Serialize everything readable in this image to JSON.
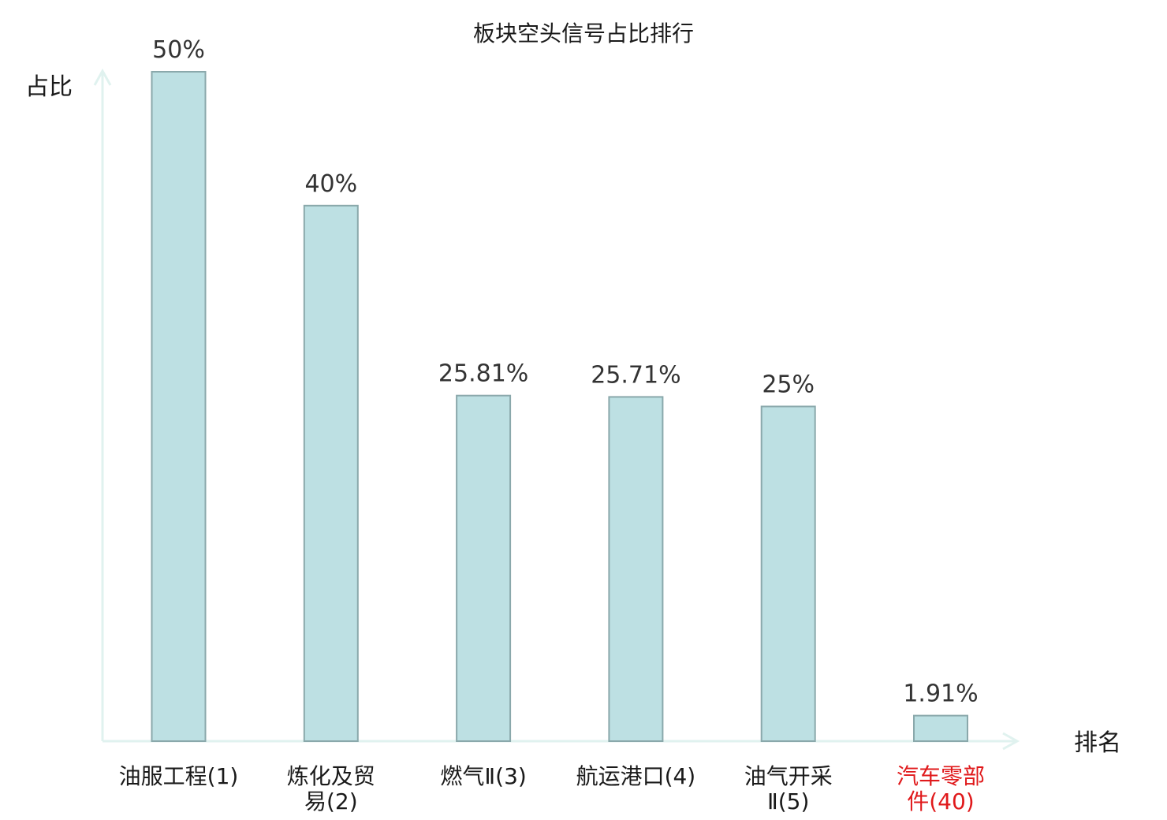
{
  "chart_data": {
    "type": "bar",
    "title": "板块空头信号占比排行",
    "ylabel": "占比",
    "xlabel": "排名",
    "categories": [
      [
        "油服工程(1)"
      ],
      [
        "炼化及贸",
        "易(2)"
      ],
      [
        "燃气Ⅱ(3)"
      ],
      [
        "航运港口(4)"
      ],
      [
        "油气开采",
        "Ⅱ(5)"
      ],
      [
        "汽车零部",
        "件(40)"
      ]
    ],
    "values": [
      50,
      40,
      25.81,
      25.71,
      25,
      1.91
    ],
    "value_labels": [
      "50%",
      "40%",
      "25.81%",
      "25.71%",
      "25%",
      "1.91%"
    ],
    "highlight_index": 5,
    "ylim": [
      0,
      50
    ],
    "grid": false,
    "legend": "none",
    "colors": {
      "bar_fill": "#bde0e3",
      "bar_stroke": "#8aa8ab",
      "axis": "#e0f2ef",
      "label": "#1a1a1a",
      "highlight_label": "#e0191b"
    }
  }
}
